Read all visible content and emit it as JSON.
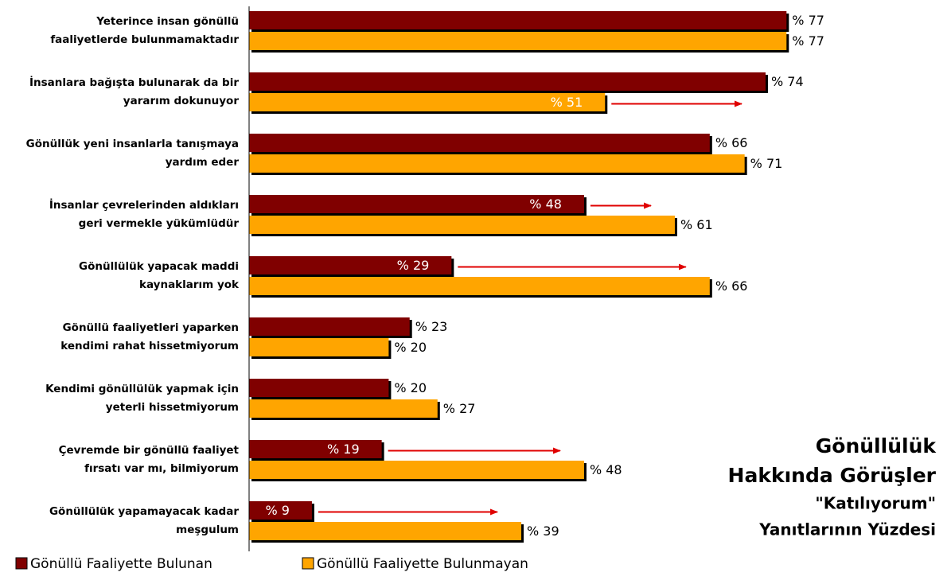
{
  "chart_data": {
    "type": "barh",
    "title": [
      "Gönüllülük",
      "Hakkında Görüşler"
    ],
    "subtitle": [
      "\"Katılıyorum\"",
      "Yanıtlarının Yüzdesi"
    ],
    "categories": [
      [
        "Yeterince insan gönüllü",
        "faaliyetlerde bulunmamaktadır"
      ],
      [
        "İnsanlara bağışta bulunarak da bir",
        "yararım dokunuyor"
      ],
      [
        "Gönüllük yeni insanlarla tanışmaya",
        "yardım eder"
      ],
      [
        "İnsanlar çevrelerinden aldıkları",
        "geri vermekle yükümlüdür"
      ],
      [
        "Gönüllülük yapacak maddi",
        "kaynaklarım yok"
      ],
      [
        "Gönüllü faaliyetleri yaparken",
        "kendimi rahat hissetmiyorum"
      ],
      [
        "Kendimi gönüllülük yapmak için",
        "yeterli hissetmiyorum"
      ],
      [
        "Çevremde bir gönüllü faaliyet",
        "fırsatı var mı, bilmiyorum"
      ],
      [
        "Gönüllülük yapamayacak kadar",
        "meşgulum"
      ]
    ],
    "series": [
      {
        "name": "Gönüllü Faaliyette Bulunan",
        "color": "#800000",
        "values": [
          77,
          74,
          66,
          48,
          29,
          23,
          20,
          19,
          9
        ],
        "value_labels": [
          "% 77",
          "% 74",
          "% 66",
          "% 48",
          "% 29",
          "% 23",
          "% 20",
          "% 19",
          "% 9"
        ]
      },
      {
        "name": "Gönüllü Faaliyette Bulunmayan",
        "color": "#ffa500",
        "values": [
          77,
          51,
          71,
          61,
          66,
          20,
          27,
          48,
          39
        ],
        "value_labels": [
          "% 77",
          "% 51",
          "% 71",
          "% 61",
          "% 66",
          "% 20",
          "% 27",
          "% 48",
          "% 39"
        ]
      }
    ],
    "xlim": [
      0,
      100
    ]
  }
}
